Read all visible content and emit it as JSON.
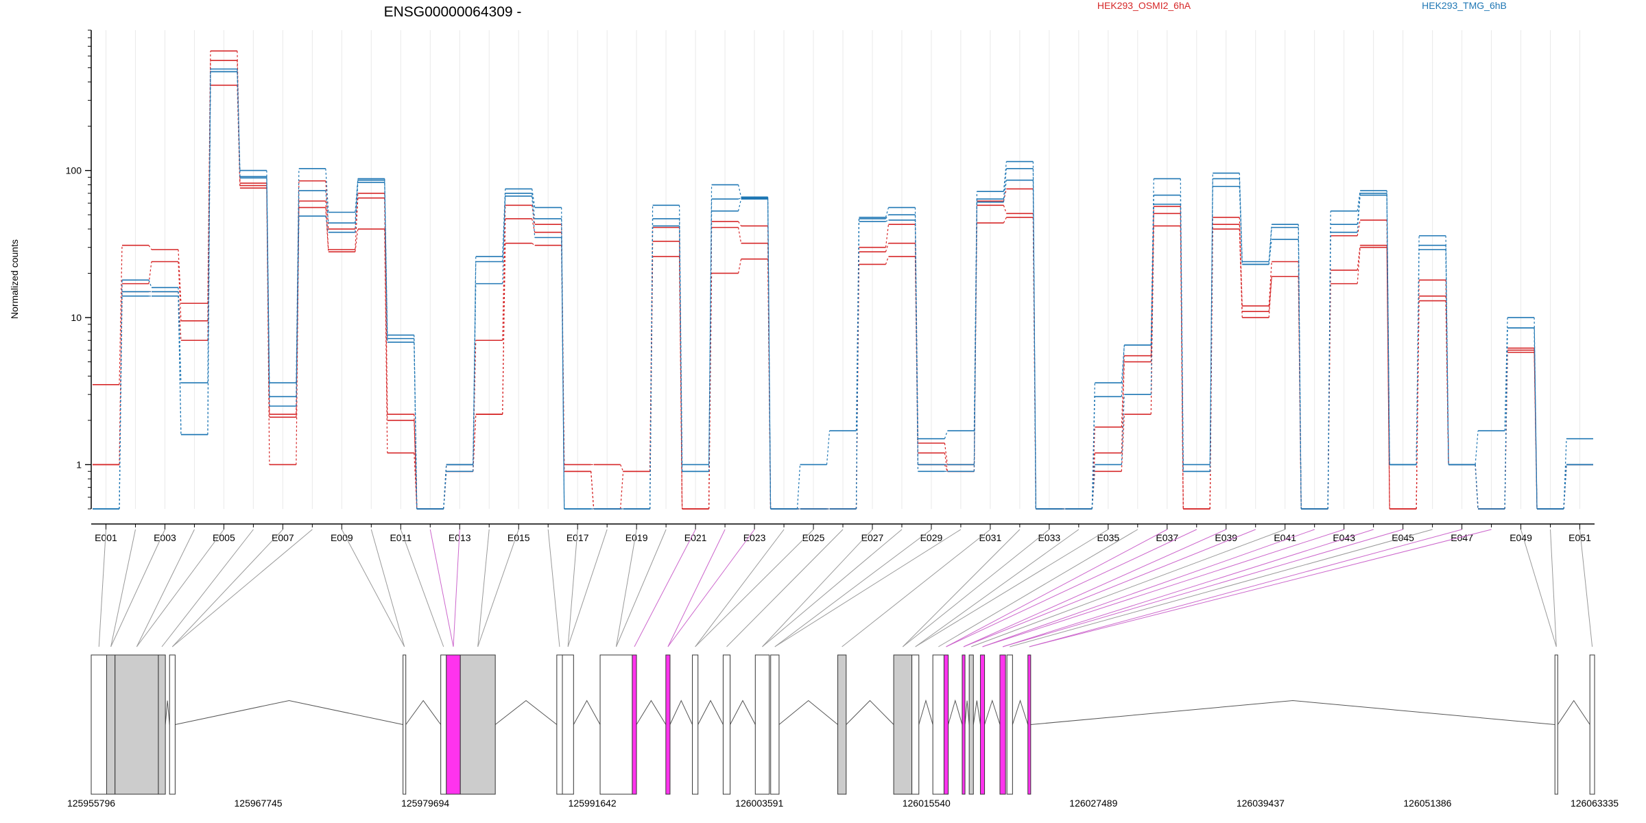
{
  "title": "ENSG00000064309 -",
  "legend": [
    {
      "name": "HEK293_OSMI2_6hA",
      "color": "#d62728"
    },
    {
      "name": "HEK293_TMG_6hB",
      "color": "#1f77b4"
    }
  ],
  "ylabel": "Normalized counts",
  "chart_data": {
    "type": "line",
    "title": "ENSG00000064309 -",
    "ylabel": "Normalized counts",
    "yscale": "log",
    "ylim": [
      0.5,
      900
    ],
    "yticks": [
      1,
      10,
      100
    ],
    "ytick_labels": [
      "1",
      "10",
      "100"
    ],
    "grid": "vertical-minor",
    "legend_placement": "top",
    "exons": [
      "E001",
      "E002",
      "E003",
      "E004",
      "E005",
      "E006",
      "E007",
      "E008",
      "E009",
      "E010",
      "E011",
      "E012",
      "E013",
      "E014",
      "E015",
      "E016",
      "E017",
      "E018",
      "E019",
      "E020",
      "E021",
      "E022",
      "E023",
      "E024",
      "E025",
      "E026",
      "E027",
      "E028",
      "E029",
      "E030",
      "E031",
      "E032",
      "E033",
      "E034",
      "E035",
      "E036",
      "E037",
      "E038",
      "E039",
      "E040",
      "E041",
      "E042",
      "E043",
      "E044",
      "E045",
      "E046",
      "E047",
      "E048",
      "E049",
      "E050",
      "E051"
    ],
    "xtick_labels": [
      "E001",
      "E003",
      "E005",
      "E007",
      "E009",
      "E011",
      "E013",
      "E015",
      "E017",
      "E019",
      "E021",
      "E023",
      "E025",
      "E027",
      "E029",
      "E031",
      "E033",
      "E035",
      "E037",
      "E039",
      "E041",
      "E043",
      "E045",
      "E047",
      "E049",
      "E051"
    ],
    "series": [
      {
        "name": "HEK293_OSMI2_6hA",
        "color": "#d62728",
        "values": [
          3.5,
          31,
          29,
          12.5,
          650,
          82,
          2.2,
          85,
          40,
          70,
          2.2,
          0.5,
          1.0,
          7.0,
          58,
          43,
          1.0,
          1.0,
          0.9,
          41,
          0.5,
          45,
          42,
          0.5,
          0.5,
          0.5,
          30,
          43,
          1.4,
          1.0,
          62,
          75,
          0.5,
          0.5,
          1.8,
          5.5,
          57,
          0.5,
          48,
          12,
          24,
          0.5,
          36,
          46,
          0.5,
          18,
          1.0,
          0.5,
          6.2,
          0.5,
          1.0
        ]
      },
      {
        "name": "HEK293_OSMI2_6hA",
        "color": "#d62728",
        "values": [
          1.0,
          17,
          24,
          9.5,
          560,
          79,
          2.1,
          62,
          29,
          65,
          2.0,
          0.5,
          0.9,
          2.2,
          47,
          38,
          0.9,
          0.5,
          0.9,
          33,
          0.5,
          41,
          32,
          0.5,
          0.5,
          0.5,
          28,
          32,
          1.2,
          0.9,
          58,
          51,
          0.5,
          0.5,
          1.2,
          5.0,
          51,
          0.5,
          43,
          11,
          19,
          0.5,
          21,
          31,
          0.5,
          14,
          1.0,
          0.5,
          6.0,
          0.5,
          1.0
        ]
      },
      {
        "name": "HEK293_OSMI2_6hA",
        "color": "#d62728",
        "values": [
          1.0,
          15,
          15,
          7.0,
          380,
          76,
          1.0,
          56,
          28,
          40,
          1.2,
          0.5,
          0.9,
          2.2,
          32,
          31,
          0.9,
          0.5,
          0.5,
          26,
          0.5,
          20,
          25,
          0.5,
          0.5,
          0.5,
          23,
          26,
          1.0,
          0.9,
          44,
          48,
          0.5,
          0.5,
          0.9,
          2.2,
          42,
          0.5,
          40,
          10,
          19,
          0.5,
          17,
          30,
          0.5,
          13,
          1.0,
          0.5,
          5.8,
          0.5,
          1.0
        ]
      },
      {
        "name": "HEK293_TMG_6hB",
        "color": "#1f77b4",
        "values": [
          0.5,
          18,
          16,
          3.6,
          490,
          100,
          3.6,
          103,
          52,
          88,
          7.6,
          0.5,
          1.0,
          26,
          75,
          56,
          0.5,
          0.5,
          0.5,
          58,
          1.0,
          80,
          66,
          0.5,
          1.0,
          1.7,
          48,
          56,
          1.5,
          1.7,
          72,
          115,
          0.5,
          0.5,
          3.6,
          6.5,
          88,
          1.0,
          96,
          24,
          43,
          0.5,
          53,
          73,
          1.0,
          36,
          1.0,
          1.7,
          10,
          0.5,
          1.5
        ]
      },
      {
        "name": "HEK293_TMG_6hB",
        "color": "#1f77b4",
        "values": [
          0.5,
          15,
          15,
          1.6,
          470,
          91,
          2.9,
          73,
          44,
          86,
          7.2,
          0.5,
          1.0,
          17,
          70,
          47,
          0.5,
          0.5,
          0.5,
          47,
          0.9,
          64,
          65,
          0.5,
          0.5,
          0.5,
          47,
          50,
          1.0,
          1.0,
          64,
          103,
          0.5,
          0.5,
          2.9,
          6.5,
          68,
          0.9,
          88,
          23,
          41,
          0.5,
          43,
          70,
          1.0,
          31,
          1.0,
          0.5,
          8.5,
          0.5,
          1.0
        ]
      },
      {
        "name": "HEK293_TMG_6hB",
        "color": "#1f77b4",
        "values": [
          0.5,
          14,
          14,
          1.6,
          470,
          89,
          2.5,
          49,
          38,
          83,
          6.8,
          0.5,
          0.9,
          24,
          67,
          35,
          0.5,
          0.5,
          0.5,
          42,
          0.9,
          53,
          64,
          0.5,
          0.5,
          0.5,
          45,
          46,
          0.9,
          0.9,
          61,
          86,
          0.5,
          0.5,
          1.0,
          3.0,
          59,
          0.9,
          78,
          23,
          34,
          0.5,
          38,
          68,
          1.0,
          29,
          1.0,
          0.5,
          8.5,
          0.5,
          1.0
        ]
      }
    ]
  },
  "gene_model": {
    "genomic_ticks": [
      "125955796",
      "125967745",
      "125979694",
      "125991642",
      "126003591",
      "126015540",
      "126027489",
      "126039437",
      "126051386",
      "126063335"
    ],
    "range": [
      125955796,
      126063335
    ],
    "colors": {
      "exon_fill": "#cccccc",
      "highlight": "#ff33ee",
      "line_grey": "#999999",
      "line_magenta": "#cc66cc"
    },
    "blocks": [
      {
        "start": 125955796,
        "end": 125956900,
        "fill": "white"
      },
      {
        "start": 125956900,
        "end": 125957500,
        "fill": "grey"
      },
      {
        "start": 125957500,
        "end": 125960600,
        "fill": "grey"
      },
      {
        "start": 125960600,
        "end": 125961100,
        "fill": "grey"
      },
      {
        "start": 125961400,
        "end": 125961800,
        "fill": "white"
      },
      {
        "start": 125978100,
        "end": 125978300,
        "fill": "white"
      },
      {
        "start": 125980800,
        "end": 125981200,
        "fill": "white"
      },
      {
        "start": 125981200,
        "end": 125982200,
        "fill": "highlight"
      },
      {
        "start": 125982200,
        "end": 125984700,
        "fill": "grey"
      },
      {
        "start": 125989100,
        "end": 125989500,
        "fill": "white"
      },
      {
        "start": 125989500,
        "end": 125990300,
        "fill": "white"
      },
      {
        "start": 125992200,
        "end": 125994500,
        "fill": "white"
      },
      {
        "start": 125994500,
        "end": 125994800,
        "fill": "highlight"
      },
      {
        "start": 125996900,
        "end": 125997200,
        "fill": "highlight"
      },
      {
        "start": 125998800,
        "end": 125999200,
        "fill": "white"
      },
      {
        "start": 126001000,
        "end": 126001500,
        "fill": "white"
      },
      {
        "start": 126003300,
        "end": 126004300,
        "fill": "white"
      },
      {
        "start": 126004400,
        "end": 126005000,
        "fill": "white"
      },
      {
        "start": 126009200,
        "end": 126009800,
        "fill": "grey"
      },
      {
        "start": 126013200,
        "end": 126014500,
        "fill": "grey"
      },
      {
        "start": 126014500,
        "end": 126015000,
        "fill": "white"
      },
      {
        "start": 126016000,
        "end": 126016800,
        "fill": "white"
      },
      {
        "start": 126016800,
        "end": 126017100,
        "fill": "highlight"
      },
      {
        "start": 126018100,
        "end": 126018300,
        "fill": "highlight"
      },
      {
        "start": 126018600,
        "end": 126018900,
        "fill": "grey"
      },
      {
        "start": 126019400,
        "end": 126019700,
        "fill": "highlight"
      },
      {
        "start": 126020800,
        "end": 126021200,
        "fill": "highlight"
      },
      {
        "start": 126021300,
        "end": 126021700,
        "fill": "white"
      },
      {
        "start": 126022800,
        "end": 126023000,
        "fill": "highlight"
      },
      {
        "start": 126060500,
        "end": 126060700,
        "fill": "white"
      },
      {
        "start": 126063000,
        "end": 126063335,
        "fill": "white"
      }
    ]
  }
}
